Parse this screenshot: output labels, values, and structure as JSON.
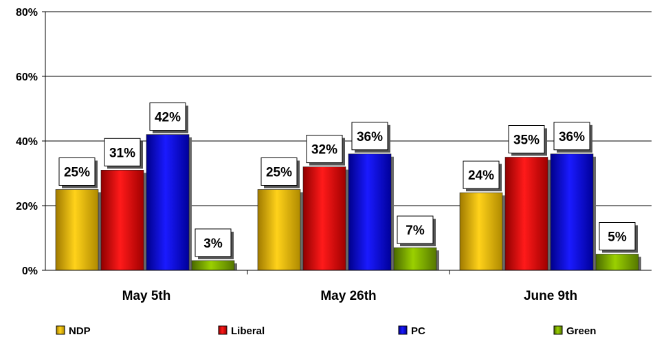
{
  "chart_data": {
    "type": "bar",
    "title": "",
    "xlabel": "",
    "ylabel": "",
    "ylim": [
      0,
      80
    ],
    "y_ticks": [
      "0%",
      "20%",
      "40%",
      "60%",
      "80%"
    ],
    "y_tick_values": [
      0,
      20,
      40,
      60,
      80
    ],
    "grid": true,
    "legend_position": "bottom",
    "categories": [
      "May 5th",
      "May 26th",
      "June 9th"
    ],
    "series": [
      {
        "name": "NDP",
        "color": "#e8b800",
        "values": [
          25,
          25,
          24
        ],
        "labels": [
          "25%",
          "25%",
          "24%"
        ]
      },
      {
        "name": "Liberal",
        "color": "#e00000",
        "values": [
          31,
          32,
          35
        ],
        "labels": [
          "31%",
          "32%",
          "35%"
        ]
      },
      {
        "name": "PC",
        "color": "#0000e0",
        "values": [
          42,
          36,
          36
        ],
        "labels": [
          "42%",
          "36%",
          "36%"
        ]
      },
      {
        "name": "Green",
        "color": "#7aa800",
        "values": [
          3,
          7,
          5
        ],
        "labels": [
          "3%",
          "7%",
          "5%"
        ]
      }
    ]
  }
}
